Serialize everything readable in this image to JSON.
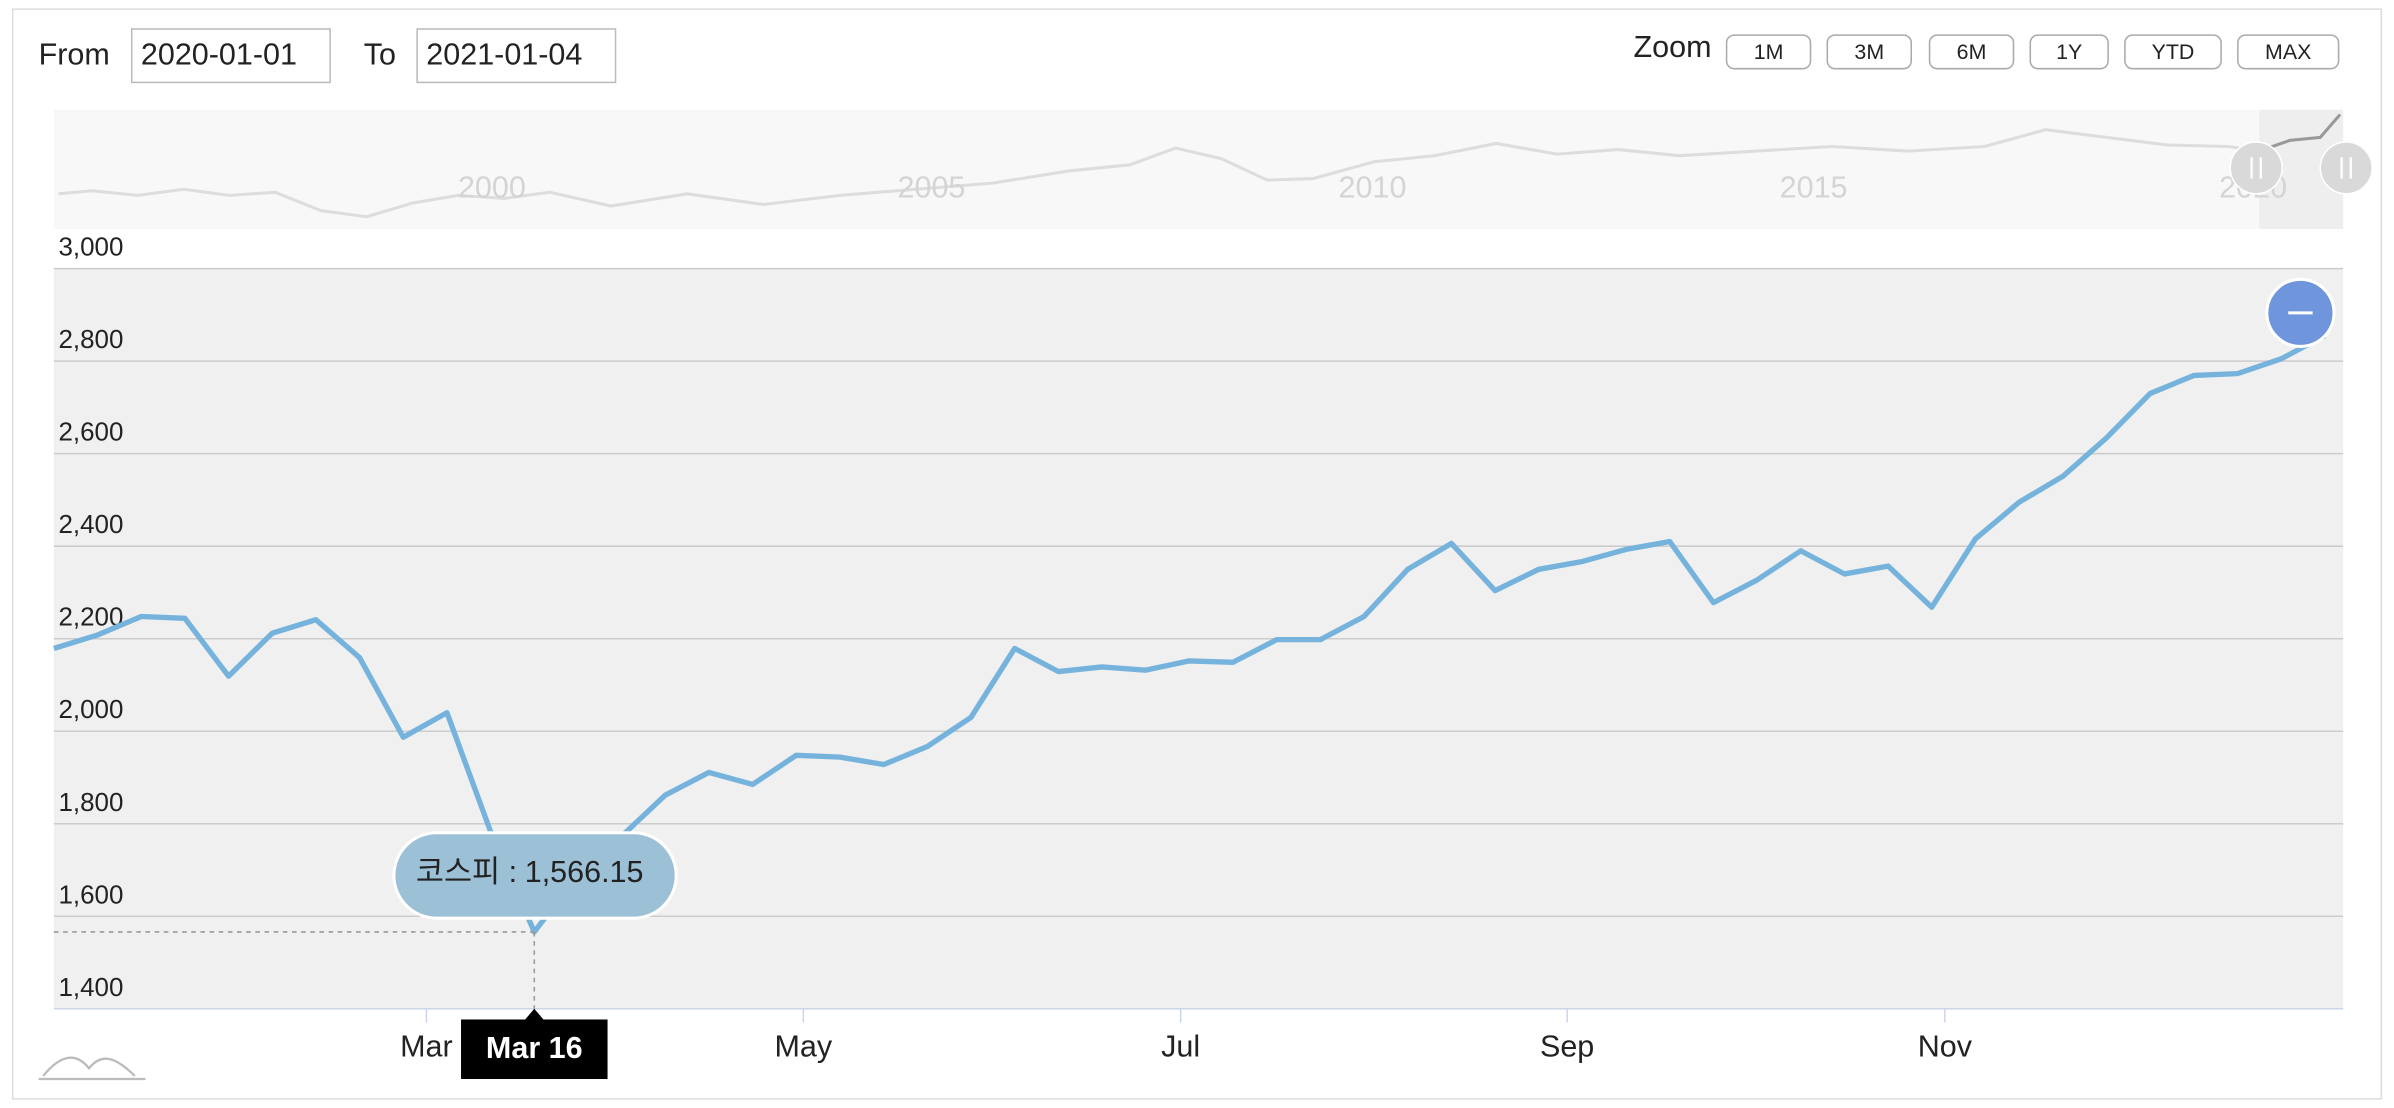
{
  "controls": {
    "from_label": "From",
    "from_value": "2020-01-01",
    "to_label": "To",
    "to_value": "2021-01-04",
    "zoom_label": "Zoom",
    "zoom_buttons": [
      "1M",
      "3M",
      "6M",
      "1Y",
      "YTD",
      "MAX"
    ]
  },
  "navigator": {
    "labels": [
      "2000",
      "2005",
      "2010",
      "2015",
      "2020"
    ]
  },
  "chart_data": {
    "type": "line",
    "color": "#76b3dc",
    "grid": true,
    "values": [
      2179,
      2208,
      2248,
      2244,
      2119,
      2212,
      2241,
      2159,
      1987,
      2040,
      1783,
      1566.15,
      1690,
      1773,
      1862,
      1911,
      1885,
      1948,
      1944,
      1928,
      1967,
      2030,
      2179,
      2129,
      2139,
      2132,
      2152,
      2149,
      2198,
      2198,
      2248,
      2350,
      2406,
      2304,
      2350,
      2367,
      2393,
      2410,
      2278,
      2327,
      2390,
      2340,
      2357,
      2268,
      2416,
      2495,
      2551,
      2634,
      2730,
      2769,
      2773,
      2805,
      2855
    ],
    "value_labels": [
      null,
      null,
      null,
      null,
      null,
      null,
      null,
      null,
      null,
      null,
      null,
      "1,566.15",
      null,
      null,
      null,
      null,
      null,
      null,
      null,
      null,
      null,
      null,
      null,
      null,
      null,
      null,
      null,
      null,
      null,
      null,
      null,
      null,
      null,
      null,
      null,
      null,
      null,
      null,
      null,
      null,
      null,
      null,
      null,
      null,
      null,
      null,
      null,
      null,
      null,
      null,
      null,
      null,
      null
    ],
    "tooltip_name": "코스피 :",
    "tooltip_x_label": "Mar 16",
    "xlim": [
      0,
      52
    ],
    "xticks": [
      {
        "value": 8.53,
        "label": "Mar"
      },
      {
        "value": 17.16,
        "label": "May"
      },
      {
        "value": 25.8,
        "label": "Jul"
      },
      {
        "value": 34.65,
        "label": "Sep"
      },
      {
        "value": 43.3,
        "label": "Nov"
      }
    ],
    "ylim": [
      1400,
      3000
    ],
    "yticks": [
      {
        "value": 1400,
        "label": "1,400"
      },
      {
        "value": 1600,
        "label": "1,600"
      },
      {
        "value": 1800,
        "label": "1,800"
      },
      {
        "value": 2000,
        "label": "2,000"
      },
      {
        "value": 2200,
        "label": "2,200"
      },
      {
        "value": 2400,
        "label": "2,400"
      },
      {
        "value": 2600,
        "label": "2,600"
      },
      {
        "value": 2800,
        "label": "2,800"
      },
      {
        "value": 3000,
        "label": "3,000"
      }
    ]
  }
}
